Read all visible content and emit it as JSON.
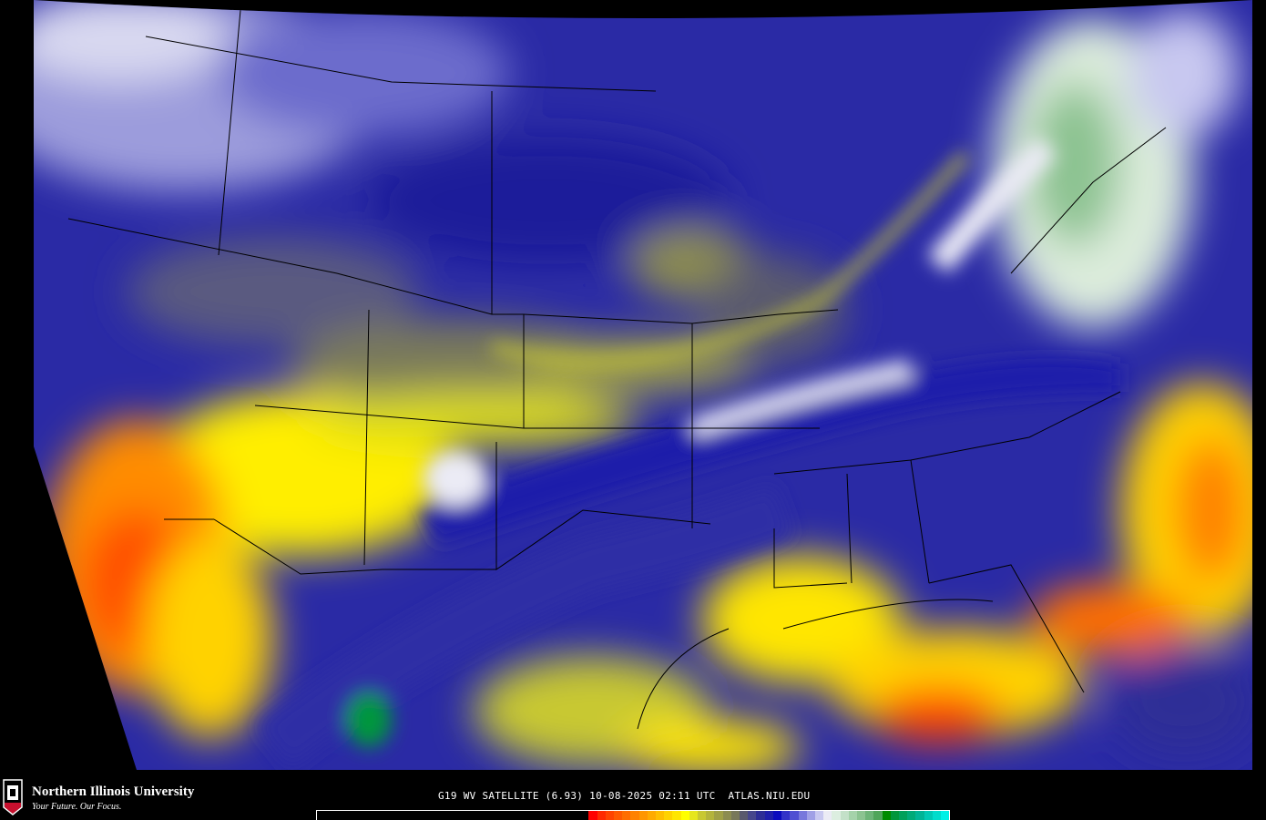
{
  "logo": {
    "name": "Northern Illinois University",
    "tagline": "Your Future. Our Focus.",
    "badge": "NIU"
  },
  "caption": {
    "product": "G19 WV SATELLITE (6.93)",
    "datetime": "10-08-2025 02:11 UTC",
    "source": "ATLAS.NIU.EDU"
  },
  "colorbar": {
    "colors": [
      "#000000",
      "#ff0000",
      "#ff2a00",
      "#ff4400",
      "#ff5a00",
      "#ff6e00",
      "#ff8200",
      "#ff9600",
      "#ffaa00",
      "#ffbe00",
      "#ffd200",
      "#ffe600",
      "#ffff00",
      "#e6e61e",
      "#c8c832",
      "#b4b43c",
      "#a0a046",
      "#8c8c50",
      "#78785a",
      "#5a5a6e",
      "#46468c",
      "#2d2d96",
      "#1e1eaa",
      "#0a0abe",
      "#3232c8",
      "#5050d2",
      "#7878dc",
      "#a0a0e6",
      "#c8c8f0",
      "#ebebf5",
      "#dceee0",
      "#c3e0c8",
      "#a5d2aa",
      "#8cc391",
      "#6eb478",
      "#50a55a",
      "#008c00",
      "#00963c",
      "#00a05a",
      "#00aa78",
      "#00b496",
      "#00c8b4",
      "#00dccc",
      "#00f0e6"
    ],
    "black_fraction": 0.43
  },
  "map": {
    "region": "CONUS",
    "palette": {
      "dry": "#ff5a00",
      "moderate": "#ffff00",
      "transition": "#78785a",
      "moist": "#1e1eaa",
      "very_moist": "#ebebf5",
      "cloud_tops": "#008c00"
    }
  }
}
